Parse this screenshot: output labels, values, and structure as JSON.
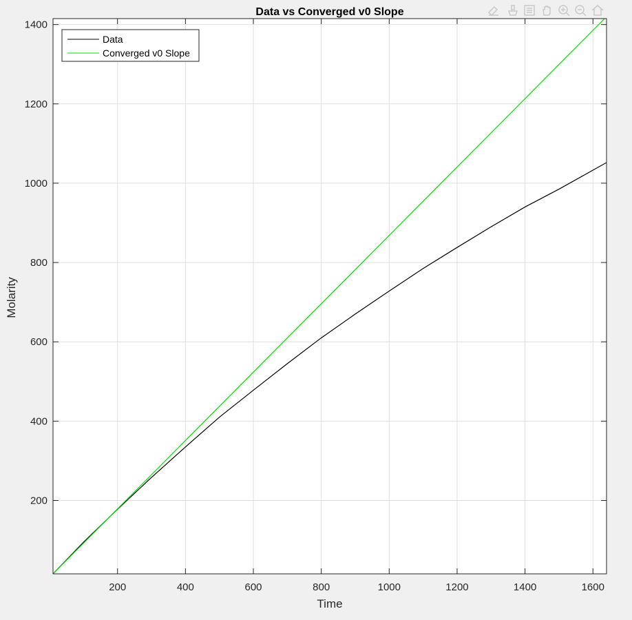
{
  "toolbar": {
    "icons": [
      "data-tips-icon",
      "brush-icon",
      "export-icon",
      "pan-icon",
      "zoom-in-icon",
      "zoom-out-icon",
      "home-icon"
    ]
  },
  "chart_data": {
    "type": "line",
    "title": "Data vs Converged v0 Slope",
    "xlabel": "Time",
    "ylabel": "Molarity",
    "xlim": [
      10,
      1640
    ],
    "ylim": [
      15,
      1415
    ],
    "xticks": [
      200,
      400,
      600,
      800,
      1000,
      1200,
      1400,
      1600
    ],
    "yticks": [
      200,
      400,
      600,
      800,
      1000,
      1200,
      1400
    ],
    "grid": true,
    "legend_position": "top-left",
    "series": [
      {
        "name": "Data",
        "color": "#000000",
        "x": [
          10,
          100,
          200,
          300,
          400,
          500,
          600,
          700,
          800,
          900,
          1000,
          1100,
          1200,
          1300,
          1400,
          1500,
          1640
        ],
        "y": [
          15,
          95,
          178,
          258,
          335,
          410,
          478,
          545,
          610,
          670,
          728,
          785,
          838,
          890,
          940,
          985,
          1052
        ]
      },
      {
        "name": "Converged v0 Slope",
        "color": "#00dd00",
        "x": [
          10,
          1640
        ],
        "y": [
          15,
          1420
        ]
      }
    ]
  }
}
